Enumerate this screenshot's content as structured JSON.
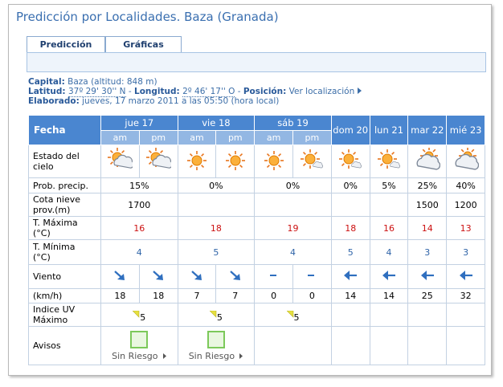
{
  "header": {
    "title": "Predicción por Localidades. Baza (Granada)"
  },
  "tabs": [
    "Predicción",
    "Gráficas"
  ],
  "info": {
    "capital_label": "Capital:",
    "capital": "Baza (altitud: 848 m)",
    "latitud_label": "Latitud:",
    "latitud": "37º 29' 30'' N",
    "sep1": "-",
    "longitud_label": "Longitud:",
    "longitud": "2º 46' 17'' O",
    "sep2": "-",
    "posicion_label": "Posición:",
    "posicion": "Ver localización",
    "elaborado_label": "Elaborado:",
    "elaborado": "jueves, 17 marzo 2011 a las 05:50 (hora local)"
  },
  "table": {
    "header": "Fecha",
    "days": [
      "jue 17",
      "vie 18",
      "sáb 19",
      "dom 20",
      "lun 21",
      "mar 22",
      "mié 23"
    ],
    "periods": [
      "am",
      "pm",
      "am",
      "pm",
      "am",
      "pm"
    ],
    "rows": {
      "sky": {
        "label": [
          "Estado del",
          "cielo"
        ]
      },
      "prob": {
        "label": [
          "Prob. precip."
        ],
        "values": [
          "15%",
          "0%",
          "0%",
          "0%",
          "5%",
          "25%",
          "40%"
        ]
      },
      "snow": {
        "label": [
          "Cota nieve",
          "prov.(m)"
        ],
        "values": [
          1700,
          null,
          null,
          null,
          null,
          1500,
          1200
        ]
      },
      "tmax": {
        "label": [
          "T. Máxima",
          "(°C)"
        ],
        "values": [
          16,
          18,
          19,
          18,
          16,
          14,
          13
        ]
      },
      "tmin": {
        "label": [
          "T. Mínima",
          "(°C)"
        ],
        "values": [
          4,
          5,
          4,
          5,
          4,
          3,
          3
        ]
      },
      "wind": {
        "label": [
          "Viento"
        ]
      },
      "speed": {
        "label": [
          "(km/h)"
        ],
        "values": [
          18,
          18,
          7,
          7,
          0,
          0,
          14,
          14,
          25,
          32
        ]
      },
      "uv": {
        "label": [
          "Indice UV",
          "Máximo"
        ],
        "values": [
          5,
          5,
          5,
          null,
          null,
          null,
          null
        ]
      },
      "alerts": {
        "label": [
          "Avisos"
        ],
        "values": [
          "Sin Riesgo",
          "Sin Riesgo",
          null,
          null,
          null,
          null,
          null
        ]
      }
    }
  }
}
